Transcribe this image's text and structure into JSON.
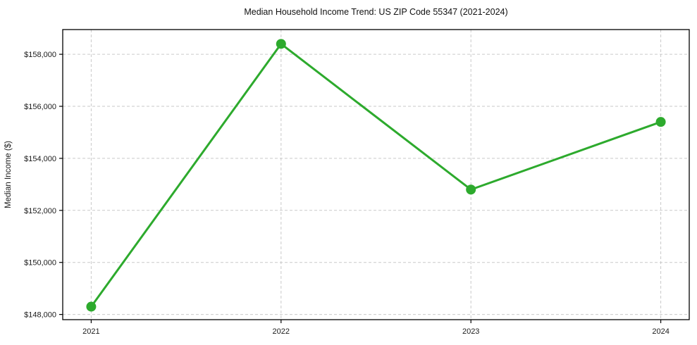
{
  "chart_data": {
    "type": "line",
    "title": "Median Household Income Trend: US ZIP Code 55347 (2021-2024)",
    "xlabel": "",
    "ylabel": "Median Income ($)",
    "categories": [
      "2021",
      "2022",
      "2023",
      "2024"
    ],
    "series": [
      {
        "name": "Median Household Income",
        "values": [
          148300,
          158400,
          152800,
          155400
        ]
      }
    ],
    "yticks": [
      148000,
      150000,
      152000,
      154000,
      156000,
      158000
    ],
    "ytick_labels": [
      "$148,000",
      "$150,000",
      "$152,000",
      "$154,000",
      "$156,000",
      "$158,000"
    ],
    "ylim": [
      147800,
      158950
    ],
    "grid": true,
    "grid_style": "dashed",
    "legend": "none",
    "colors": {
      "line": "#2daa2d",
      "marker": "#2daa2d",
      "gridline": "#c9c9c9",
      "spine": "#000000",
      "text": "#1a1a1a"
    }
  }
}
